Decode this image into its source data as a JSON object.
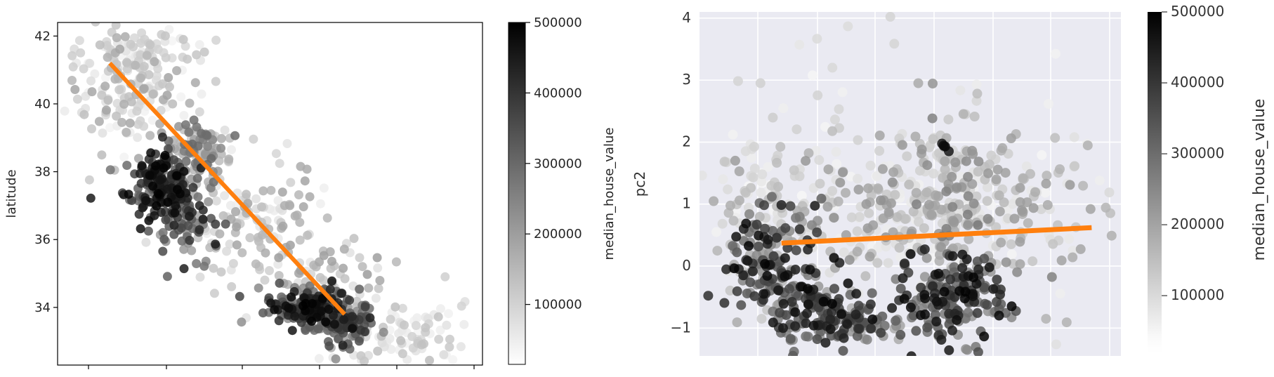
{
  "chart_data": [
    {
      "type": "scatter",
      "style": "matplotlib-default",
      "title": "",
      "xlabel": "",
      "ylabel": "latitude",
      "xlim": [
        -125,
        -113.6
      ],
      "ylim": [
        32.3,
        42.4
      ],
      "y_ticks": [
        "34",
        "36",
        "38",
        "40",
        "42"
      ],
      "x_ticks_unlabeled": 6,
      "grid": false,
      "point_color_encoding": "median_house_value (gray colormap)",
      "colorbar": {
        "label": "median_house_value",
        "range": [
          15000,
          500000
        ],
        "ticks": [
          "100000",
          "200000",
          "300000",
          "400000",
          "500000"
        ]
      },
      "line": {
        "color": "#ff7f0e",
        "x": [
          -123.6,
          -117.3
        ],
        "y": [
          41.2,
          33.8
        ]
      },
      "point_clusters": [
        {
          "x": -118.2,
          "y": 34.0,
          "count": 220,
          "spread_x": 0.55,
          "spread_y": 0.28,
          "value_range": [
            200000,
            500000
          ]
        },
        {
          "x": -117.4,
          "y": 33.4,
          "count": 90,
          "spread_x": 0.35,
          "spread_y": 0.35,
          "value_range": [
            150000,
            450000
          ]
        },
        {
          "x": -122.3,
          "y": 37.6,
          "count": 200,
          "spread_x": 0.45,
          "spread_y": 0.45,
          "value_range": [
            250000,
            500000
          ]
        },
        {
          "x": -121.6,
          "y": 36.6,
          "count": 70,
          "spread_x": 0.4,
          "spread_y": 0.5,
          "value_range": [
            150000,
            450000
          ]
        },
        {
          "x": -121.2,
          "y": 38.6,
          "count": 110,
          "spread_x": 0.45,
          "spread_y": 0.45,
          "value_range": [
            60000,
            300000
          ]
        },
        {
          "x": -119.8,
          "y": 36.6,
          "count": 130,
          "spread_x": 0.9,
          "spread_y": 0.9,
          "value_range": [
            30000,
            180000
          ]
        },
        {
          "x": -123.0,
          "y": 40.4,
          "count": 160,
          "spread_x": 0.9,
          "spread_y": 0.9,
          "value_range": [
            20000,
            180000
          ]
        },
        {
          "x": -122.5,
          "y": 41.6,
          "count": 60,
          "spread_x": 0.8,
          "spread_y": 0.3,
          "value_range": [
            20000,
            120000
          ]
        },
        {
          "x": -115.8,
          "y": 33.2,
          "count": 90,
          "spread_x": 0.9,
          "spread_y": 0.5,
          "value_range": [
            20000,
            130000
          ]
        },
        {
          "x": -117.6,
          "y": 34.7,
          "count": 70,
          "spread_x": 0.8,
          "spread_y": 0.6,
          "value_range": [
            40000,
            200000
          ]
        }
      ]
    },
    {
      "type": "scatter",
      "style": "seaborn-darkgrid",
      "title": "",
      "xlabel": "",
      "ylabel": "pc2",
      "xlim": [
        -2.5,
        4.7
      ],
      "ylim": [
        -1.45,
        4.1
      ],
      "y_ticks": [
        "-1",
        "0",
        "1",
        "2",
        "3",
        "4"
      ],
      "x_ticks_unlabeled": 7,
      "grid": true,
      "point_color_encoding": "median_house_value (gray colormap)",
      "colorbar": {
        "label": "median_house_value",
        "range": [
          15000,
          500000
        ],
        "ticks": [
          "100000",
          "200000",
          "300000",
          "400000",
          "500000"
        ]
      },
      "line": {
        "color": "#ff7f0e",
        "x": [
          -1.1,
          4.2
        ],
        "y": [
          0.37,
          0.62
        ]
      },
      "point_clusters": [
        {
          "x": -1.3,
          "y": 0.1,
          "count": 160,
          "spread_x": 0.35,
          "spread_y": 0.5,
          "value_range": [
            100000,
            500000
          ]
        },
        {
          "x": -0.5,
          "y": -0.8,
          "count": 120,
          "spread_x": 0.4,
          "spread_y": 0.3,
          "value_range": [
            200000,
            500000
          ]
        },
        {
          "x": 0.3,
          "y": -0.9,
          "count": 60,
          "spread_x": 0.4,
          "spread_y": 0.2,
          "value_range": [
            150000,
            450000
          ]
        },
        {
          "x": 1.8,
          "y": -0.5,
          "count": 180,
          "spread_x": 0.45,
          "spread_y": 0.4,
          "value_range": [
            200000,
            500000
          ]
        },
        {
          "x": 0.8,
          "y": 0.8,
          "count": 220,
          "spread_x": 1.2,
          "spread_y": 0.6,
          "value_range": [
            20000,
            220000
          ]
        },
        {
          "x": 2.6,
          "y": 0.9,
          "count": 150,
          "spread_x": 0.9,
          "spread_y": 0.7,
          "value_range": [
            20000,
            200000
          ]
        },
        {
          "x": 1.7,
          "y": 1.4,
          "count": 80,
          "spread_x": 0.45,
          "spread_y": 0.6,
          "value_range": [
            40000,
            260000
          ]
        },
        {
          "x": -1.4,
          "y": 1.1,
          "count": 70,
          "spread_x": 0.45,
          "spread_y": 0.5,
          "value_range": [
            15000,
            150000
          ]
        },
        {
          "x": 0.8,
          "y": 2.2,
          "count": 50,
          "spread_x": 1.6,
          "spread_y": 0.8,
          "value_range": [
            15000,
            100000
          ]
        },
        {
          "x": 1.7,
          "y": 1.9,
          "count": 4,
          "spread_x": 0.05,
          "spread_y": 0.05,
          "value_range": [
            450000,
            500000
          ]
        }
      ]
    }
  ]
}
